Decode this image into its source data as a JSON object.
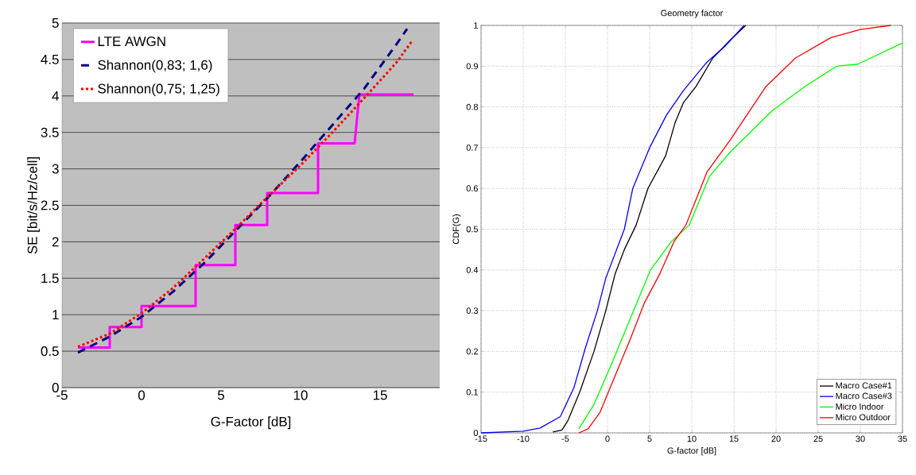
{
  "chart_data": [
    {
      "type": "line",
      "xlabel": "G-Factor [dB]",
      "ylabel": "SE [bit/s/Hz/cell]",
      "xlim": [
        -5,
        18.75
      ],
      "ylim": [
        0,
        5
      ],
      "xticks": [
        -5,
        0,
        5,
        10,
        15
      ],
      "yticks": [
        0,
        0.5,
        1,
        1.5,
        2,
        2.5,
        3,
        3.5,
        4,
        4.5,
        5
      ],
      "grid": "y",
      "legend": "top left",
      "series": [
        {
          "name": "LTE AWGN",
          "color": "#ff00ff",
          "line_style": "solid",
          "x": [
            -4,
            -2,
            -2,
            0,
            0,
            3.4,
            3.4,
            5.9,
            5.9,
            7.9,
            7.9,
            11.1,
            11.1,
            13.4,
            13.7,
            17.1
          ],
          "values": [
            0.55,
            0.55,
            0.83,
            0.83,
            1.12,
            1.12,
            1.68,
            1.68,
            2.23,
            2.23,
            2.67,
            2.67,
            3.35,
            3.35,
            4.02,
            4.02
          ]
        },
        {
          "name": "Shannon(0,83; 1,6)",
          "color": "#000080",
          "line_style": "dashed",
          "x": [
            -4,
            -2,
            0,
            2,
            4,
            6,
            8,
            10,
            12,
            14,
            16,
            16.7
          ],
          "values": [
            0.48,
            0.7,
            0.97,
            1.32,
            1.72,
            2.17,
            2.62,
            3.1,
            3.6,
            4.1,
            4.7,
            4.92
          ]
        },
        {
          "name": "Shannon(0,75; 1,25)",
          "color": "#ff0000",
          "line_style": "dotted",
          "x": [
            -4,
            -2,
            0,
            2,
            4,
            6,
            8,
            10,
            12,
            14,
            16,
            17
          ],
          "values": [
            0.56,
            0.74,
            1.02,
            1.37,
            1.78,
            2.2,
            2.63,
            3.05,
            3.5,
            3.97,
            4.45,
            4.75
          ]
        }
      ]
    },
    {
      "type": "line",
      "title": "Geometry factor",
      "xlabel": "G-factor [dB]",
      "ylabel": "CDF(G)",
      "xlim": [
        -15,
        35
      ],
      "ylim": [
        0,
        1
      ],
      "xticks": [
        -15,
        -10,
        -5,
        0,
        5,
        10,
        15,
        20,
        25,
        30,
        35
      ],
      "yticks": [
        0,
        0.1,
        0.2,
        0.3,
        0.4,
        0.5,
        0.6,
        0.7,
        0.8,
        0.9,
        1
      ],
      "grid": true,
      "legend": "bottom right",
      "series": [
        {
          "name": "Macro Case#1",
          "color": "#000000",
          "x": [
            -6.5,
            -5.4,
            -4.7,
            -3.3,
            -1.6,
            -0.2,
            0.9,
            2,
            3.4,
            4.8,
            6.9,
            8,
            9,
            10.5,
            12.5,
            14.6,
            16.4
          ],
          "values": [
            0.002,
            0.007,
            0.03,
            0.1,
            0.2,
            0.3,
            0.39,
            0.45,
            0.51,
            0.6,
            0.68,
            0.76,
            0.81,
            0.85,
            0.92,
            0.965,
            1
          ]
        },
        {
          "name": "Macro Case#3",
          "color": "#0000ff",
          "x": [
            -15,
            -10,
            -8,
            -5.6,
            -4,
            -2.6,
            -1.2,
            -0.2,
            0.9,
            2,
            3,
            5,
            7,
            9,
            11.8,
            14,
            16.2
          ],
          "values": [
            0,
            0.004,
            0.012,
            0.04,
            0.11,
            0.21,
            0.3,
            0.38,
            0.44,
            0.5,
            0.6,
            0.7,
            0.78,
            0.84,
            0.91,
            0.95,
            1
          ]
        },
        {
          "name": "Micro Indoor",
          "color": "#00ff00",
          "x": [
            -3.4,
            -1.6,
            0.5,
            2.7,
            5.1,
            7.6,
            9.7,
            12.1,
            14.6,
            19.5,
            23.4,
            27.2,
            29.7,
            35
          ],
          "values": [
            0.01,
            0.07,
            0.17,
            0.28,
            0.4,
            0.47,
            0.51,
            0.63,
            0.69,
            0.79,
            0.85,
            0.9,
            0.905,
            0.957
          ]
        },
        {
          "name": "Micro Outdoor",
          "color": "#ff0000",
          "x": [
            -3.4,
            -2.3,
            -0.9,
            0.5,
            2.7,
            4.4,
            6.2,
            7.9,
            9.3,
            11.8,
            14.6,
            18.8,
            22.3,
            26.5,
            30,
            33.6
          ],
          "values": [
            0,
            0.01,
            0.05,
            0.12,
            0.23,
            0.32,
            0.39,
            0.47,
            0.51,
            0.64,
            0.72,
            0.85,
            0.92,
            0.97,
            0.99,
            1
          ]
        }
      ]
    }
  ]
}
